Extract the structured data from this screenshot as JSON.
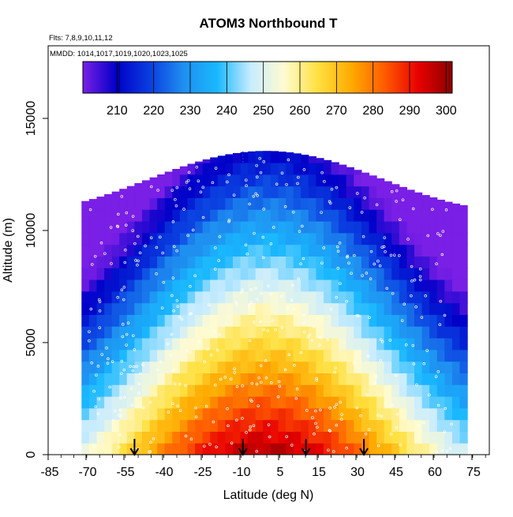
{
  "chart_data": {
    "type": "heatmap",
    "title": "ATOM3 Northbound T",
    "flights_note": "Flts: 7,8,9,10,11,12",
    "dates_note": "MMDD: 1014,1017,1019,1020,1023,1025",
    "xlabel": "Latitude (deg N)",
    "ylabel": "Altitude (m)",
    "xlim": [
      -85,
      90
    ],
    "ylim": [
      0,
      17500
    ],
    "x_tick_labels": [
      "-85",
      "-70",
      "-55",
      "-40",
      "-25",
      "-10",
      "5",
      "15",
      "30",
      "45",
      "60",
      "75"
    ],
    "y_tick_labels": [
      "0",
      "5000",
      "10000",
      "15000"
    ],
    "colorbar": {
      "ticks": [
        "210",
        "220",
        "230",
        "240",
        "250",
        "260",
        "270",
        "280",
        "290",
        "300"
      ],
      "range": [
        200,
        301
      ],
      "stops": [
        "#7a1fe6",
        "#0000c8",
        "#0a3ee0",
        "#1f8ff0",
        "#19b8ff",
        "#c8ecff",
        "#fffbd0",
        "#ffe040",
        "#ffaa00",
        "#ff5a00",
        "#e80000",
        "#8b0000"
      ]
    },
    "field_model": {
      "surface_T_equator": 298,
      "surface_T_poles": 244,
      "lapse_rate_K_per_km": 6.8,
      "domain_lat": [
        -73,
        78
      ],
      "domain_top_alt_at_equator": 13000,
      "domain_top_alt_at_edges": 10500
    },
    "profile_markers_lat": [
      -52,
      -9,
      16,
      39
    ],
    "profile_marker_label_note": "vertical profile locations"
  }
}
